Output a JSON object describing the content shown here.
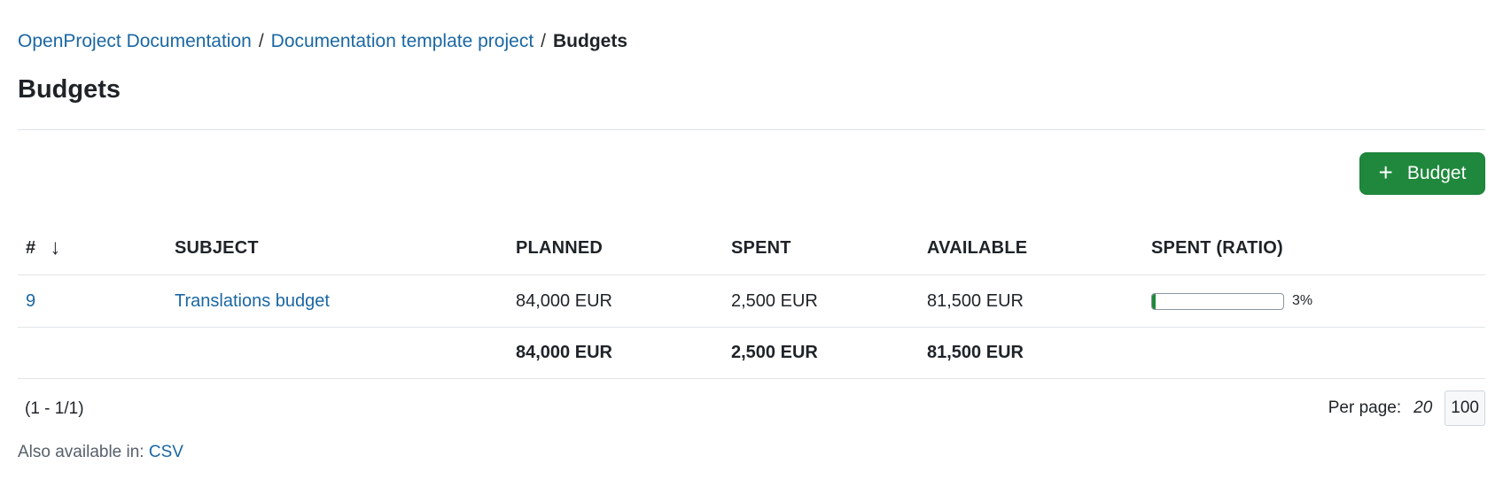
{
  "breadcrumb": {
    "items": [
      "OpenProject Documentation",
      "Documentation template project"
    ],
    "separator": "/",
    "current": "Budgets"
  },
  "page": {
    "title": "Budgets"
  },
  "toolbar": {
    "add_label": "Budget",
    "add_icon": "plus-icon",
    "accent_color": "#1f883d"
  },
  "table": {
    "headers": {
      "id": "#",
      "subject": "SUBJECT",
      "planned": "PLANNED",
      "spent": "SPENT",
      "available": "AVAILABLE",
      "ratio": "SPENT (RATIO)"
    },
    "sort_icon": "arrow-down-icon",
    "rows": [
      {
        "id": "9",
        "subject": "Translations budget",
        "planned": "84,000 EUR",
        "spent": "2,500 EUR",
        "available": "81,500 EUR",
        "ratio": 3,
        "ratio_label": "3%"
      }
    ],
    "totals": {
      "planned": "84,000 EUR",
      "spent": "2,500 EUR",
      "available": "81,500 EUR"
    }
  },
  "pagination": {
    "range": "(1 - 1/1)",
    "per_page_label": "Per page:",
    "options": [
      "20",
      "100"
    ],
    "selected": "100"
  },
  "export": {
    "label": "Also available in:",
    "formats": [
      "CSV"
    ]
  }
}
